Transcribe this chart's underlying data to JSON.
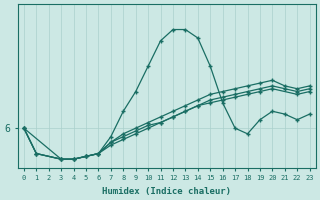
{
  "xlabel": "Humidex (Indice chaleur)",
  "bg_color": "#cce8e4",
  "line_color": "#1a6e64",
  "grid_color": "#aad0cc",
  "xlim_min": -0.5,
  "xlim_max": 23.5,
  "ylim_min": 5.3,
  "ylim_max": 8.2,
  "ytick_val": 6.0,
  "ytick_label": "6",
  "lines": [
    {
      "x": [
        0,
        1,
        3,
        4,
        5,
        6,
        7,
        8,
        9,
        10,
        11,
        12,
        13,
        14,
        15,
        16,
        17,
        18,
        19,
        20,
        21,
        22,
        23
      ],
      "y": [
        6.0,
        5.55,
        5.45,
        5.45,
        5.5,
        5.55,
        5.85,
        6.3,
        6.65,
        7.1,
        7.55,
        7.75,
        7.75,
        7.6,
        7.1,
        6.45,
        6.0,
        5.9,
        6.15,
        6.3,
        6.25,
        6.15,
        6.25
      ]
    },
    {
      "x": [
        0,
        1,
        3,
        4,
        5,
        6,
        7,
        8,
        9,
        10,
        11,
        12,
        13,
        14,
        15,
        16,
        17,
        18,
        19,
        20,
        21,
        22,
        23
      ],
      "y": [
        6.0,
        5.55,
        5.45,
        5.45,
        5.5,
        5.55,
        5.75,
        5.85,
        5.95,
        6.05,
        6.1,
        6.2,
        6.3,
        6.4,
        6.5,
        6.55,
        6.6,
        6.65,
        6.7,
        6.75,
        6.7,
        6.65,
        6.7
      ]
    },
    {
      "x": [
        0,
        3,
        4,
        5,
        6,
        7,
        8,
        9,
        10,
        11,
        12,
        13,
        14,
        15,
        16,
        17,
        18,
        19,
        20,
        21,
        22,
        23
      ],
      "y": [
        6.0,
        5.45,
        5.45,
        5.5,
        5.55,
        5.75,
        5.9,
        6.0,
        6.1,
        6.2,
        6.3,
        6.4,
        6.5,
        6.6,
        6.65,
        6.7,
        6.75,
        6.8,
        6.85,
        6.75,
        6.7,
        6.75
      ]
    },
    {
      "x": [
        0,
        1,
        3,
        4,
        5,
        6,
        7,
        8,
        9,
        10,
        11,
        12,
        13,
        14,
        15,
        16,
        17,
        18,
        19,
        20,
        22,
        23
      ],
      "y": [
        6.0,
        5.55,
        5.45,
        5.45,
        5.5,
        5.55,
        5.7,
        5.8,
        5.9,
        6.0,
        6.1,
        6.2,
        6.3,
        6.4,
        6.45,
        6.5,
        6.55,
        6.6,
        6.65,
        6.7,
        6.6,
        6.65
      ]
    }
  ]
}
